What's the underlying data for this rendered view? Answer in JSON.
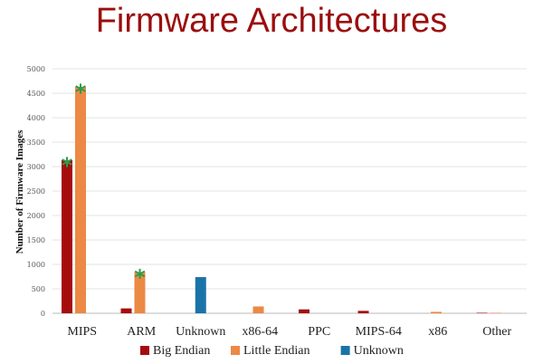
{
  "title": "Firmware Architectures",
  "chart_data": {
    "type": "bar",
    "title": "Firmware Architectures",
    "xlabel": "",
    "ylabel": "Number of Firmware Images",
    "ylim": [
      0,
      5000
    ],
    "yticks": [
      0,
      500,
      1000,
      1500,
      2000,
      2500,
      3000,
      3500,
      4000,
      4500,
      5000
    ],
    "grid": true,
    "legend_position": "bottom",
    "categories": [
      "MIPS",
      "ARM",
      "Unknown",
      "x86-64",
      "PPC",
      "MIPS-64",
      "x86",
      "Other"
    ],
    "series": [
      {
        "name": "Big Endian",
        "color": "#a50d0d",
        "values": [
          3130,
          100,
          0,
          0,
          80,
          50,
          0,
          10
        ]
      },
      {
        "name": "Little Endian",
        "color": "#ec8944",
        "values": [
          4630,
          840,
          0,
          140,
          0,
          0,
          30,
          10
        ]
      },
      {
        "name": "Unknown",
        "color": "#1a73a8",
        "values": [
          0,
          0,
          740,
          0,
          0,
          0,
          0,
          0
        ]
      }
    ],
    "annotations": [
      {
        "text": "*",
        "category": "MIPS",
        "series": "Big Endian"
      },
      {
        "text": "*",
        "category": "MIPS",
        "series": "Little Endian"
      },
      {
        "text": "*",
        "category": "ARM",
        "series": "Little Endian"
      }
    ]
  }
}
